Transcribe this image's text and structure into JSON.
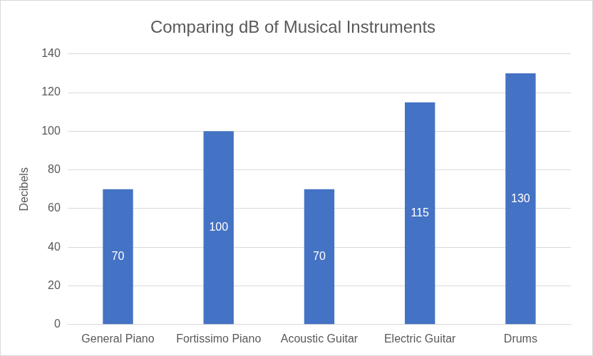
{
  "chart_data": {
    "type": "bar",
    "title": "Comparing dB of Musical Instruments",
    "y_label": "Decibels",
    "categories": [
      "General Piano",
      "Fortissimo Piano",
      "Acoustic Guitar",
      "Electric Guitar",
      "Drums"
    ],
    "values": [
      70,
      100,
      70,
      115,
      130
    ],
    "color": "#4472c4",
    "ylim": [
      0,
      140
    ],
    "yticks": [
      0,
      20,
      40,
      60,
      80,
      100,
      120,
      140
    ],
    "grid": true,
    "data_labels": true
  }
}
